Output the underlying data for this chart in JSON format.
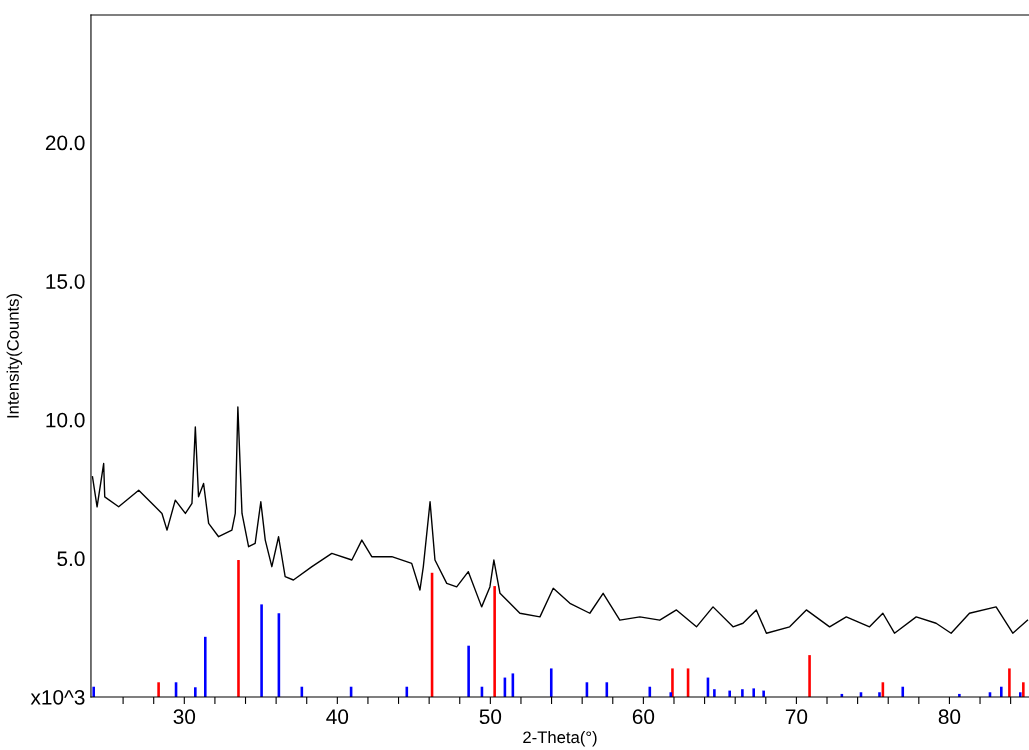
{
  "chart_data": {
    "type": "line",
    "xlabel": "2-Theta(°)",
    "ylabel": "Intensity(Counts)",
    "xlim": [
      23.9,
      85.2
    ],
    "ylim": [
      0,
      24.6
    ],
    "xticks": [
      {
        "value": 26,
        "label": null
      },
      {
        "value": 28,
        "label": null
      },
      30,
      {
        "value": 32,
        "label": null
      },
      {
        "value": 34,
        "label": null
      },
      {
        "value": 36,
        "label": null
      },
      {
        "value": 38,
        "label": null
      },
      40,
      {
        "value": 42,
        "label": null
      },
      {
        "value": 44,
        "label": null
      },
      {
        "value": 46,
        "label": null
      },
      {
        "value": 48,
        "label": null
      },
      50,
      {
        "value": 52,
        "label": null
      },
      {
        "value": 54,
        "label": null
      },
      {
        "value": 56,
        "label": null
      },
      {
        "value": 58,
        "label": null
      },
      60,
      {
        "value": 62,
        "label": null
      },
      {
        "value": 64,
        "label": null
      },
      {
        "value": 66,
        "label": null
      },
      {
        "value": 68,
        "label": null
      },
      70,
      {
        "value": 72,
        "label": null
      },
      {
        "value": 74,
        "label": null
      },
      {
        "value": 76,
        "label": null
      },
      {
        "value": 78,
        "label": null
      },
      80,
      {
        "value": 82,
        "label": null
      },
      {
        "value": 84,
        "label": null
      }
    ],
    "yticks": [
      {
        "value": 0,
        "label": "x10^3"
      },
      {
        "value": 5,
        "label": "5.0"
      },
      {
        "value": 10,
        "label": "10.0"
      },
      {
        "value": 15,
        "label": "15.0"
      },
      {
        "value": 20,
        "label": "20.0"
      }
    ],
    "grid": false,
    "marker": "none",
    "line_style": "solid",
    "series": [
      {
        "color": "#000000",
        "x": [
          24.0,
          24.3,
          24.73,
          24.8,
          25.71,
          27.02,
          27.89,
          28.54,
          28.87,
          29.41,
          30.07,
          30.5,
          30.72,
          30.93,
          31.26,
          31.59,
          32.24,
          33.11,
          33.33,
          33.5,
          33.77,
          34.2,
          34.63,
          35.0,
          35.29,
          35.72,
          36.16,
          36.59,
          37.13,
          38.34,
          39.64,
          40.95,
          41.6,
          42.25,
          43.56,
          44.86,
          45.4,
          45.62,
          46.06,
          46.38,
          47.15,
          47.8,
          48.56,
          49.43,
          49.97,
          50.23,
          50.63,
          51.93,
          53.24,
          54.11,
          55.2,
          56.5,
          57.37,
          58.46,
          59.77,
          61.07,
          62.16,
          63.47,
          64.55,
          65.86,
          66.51,
          67.38,
          68.04,
          69.56,
          70.65,
          72.17,
          73.26,
          74.78,
          75.65,
          76.41,
          77.83,
          79.13,
          80.11,
          81.31,
          83.05,
          84.14,
          85.1
        ],
        "values": [
          7.94,
          6.86,
          8.42,
          7.22,
          6.86,
          7.46,
          6.98,
          6.62,
          6.02,
          7.1,
          6.62,
          6.98,
          9.74,
          7.22,
          7.7,
          6.26,
          5.78,
          6.02,
          6.62,
          10.46,
          6.62,
          5.42,
          5.54,
          7.04,
          5.66,
          4.7,
          5.78,
          4.34,
          4.22,
          4.7,
          5.18,
          4.94,
          5.66,
          5.06,
          5.06,
          4.82,
          3.86,
          4.7,
          7.04,
          4.94,
          4.1,
          3.97,
          4.52,
          3.25,
          3.97,
          4.94,
          3.74,
          3.02,
          2.89,
          3.92,
          3.38,
          3.02,
          3.74,
          2.77,
          2.89,
          2.77,
          3.14,
          2.53,
          3.25,
          2.53,
          2.66,
          3.14,
          2.3,
          2.53,
          3.14,
          2.53,
          2.89,
          2.53,
          3.02,
          2.3,
          2.89,
          2.66,
          2.3,
          3.02,
          3.25,
          2.3,
          2.77
        ]
      },
      {
        "type": "bar",
        "color": "#ff0000",
        "x": [
          28.32,
          33.54,
          46.19,
          50.28,
          61.9,
          62.92,
          70.86,
          75.65,
          83.92,
          84.83
        ],
        "values": [
          0.53,
          4.94,
          4.48,
          4.0,
          1.03,
          1.03,
          1.51,
          0.53,
          1.03,
          0.53
        ]
      },
      {
        "type": "bar",
        "color": "#0000ff",
        "x": [
          24.08,
          29.46,
          30.72,
          31.37,
          35.05,
          36.18,
          37.68,
          40.9,
          44.54,
          48.58,
          49.45,
          50.95,
          51.47,
          53.98,
          56.31,
          57.61,
          60.42,
          61.79,
          64.22,
          64.64,
          65.64,
          66.47,
          67.21,
          67.86,
          72.97,
          74.22,
          75.43,
          76.95,
          80.65,
          82.65,
          83.39,
          84.63
        ],
        "values": [
          0.37,
          0.53,
          0.35,
          2.17,
          3.34,
          3.02,
          0.37,
          0.37,
          0.37,
          1.85,
          0.37,
          0.7,
          0.85,
          1.03,
          0.53,
          0.53,
          0.37,
          0.17,
          0.7,
          0.28,
          0.23,
          0.28,
          0.31,
          0.23,
          0.11,
          0.17,
          0.17,
          0.37,
          0.11,
          0.17,
          0.37,
          0.17
        ]
      }
    ]
  }
}
